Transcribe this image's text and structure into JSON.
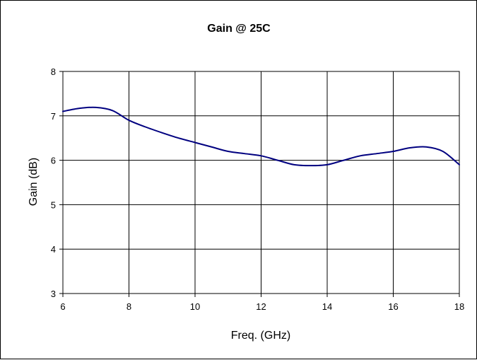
{
  "chart_data": {
    "type": "line",
    "title": "Gain @ 25C",
    "xlabel": "Freq. (GHz)",
    "ylabel": "Gain (dB)",
    "xlim": [
      6,
      18
    ],
    "ylim": [
      3,
      8
    ],
    "x_ticks": [
      "6",
      "8",
      "10",
      "12",
      "14",
      "16",
      "18"
    ],
    "y_ticks": [
      "3",
      "4",
      "5",
      "6",
      "7",
      "8"
    ],
    "grid": true,
    "legend": "none",
    "series": [
      {
        "color": "#000080",
        "x": [
          6,
          6.5,
          7,
          7.5,
          8,
          8.5,
          9,
          9.5,
          10,
          10.5,
          11,
          11.5,
          12,
          12.5,
          13,
          13.5,
          14,
          14.5,
          15,
          15.5,
          16,
          16.5,
          17,
          17.5,
          18
        ],
        "y": [
          7.1,
          7.17,
          7.19,
          7.12,
          6.9,
          6.75,
          6.62,
          6.5,
          6.4,
          6.3,
          6.2,
          6.15,
          6.1,
          6.0,
          5.9,
          5.88,
          5.9,
          6.0,
          6.1,
          6.15,
          6.2,
          6.28,
          6.3,
          6.2,
          5.9
        ]
      }
    ]
  }
}
